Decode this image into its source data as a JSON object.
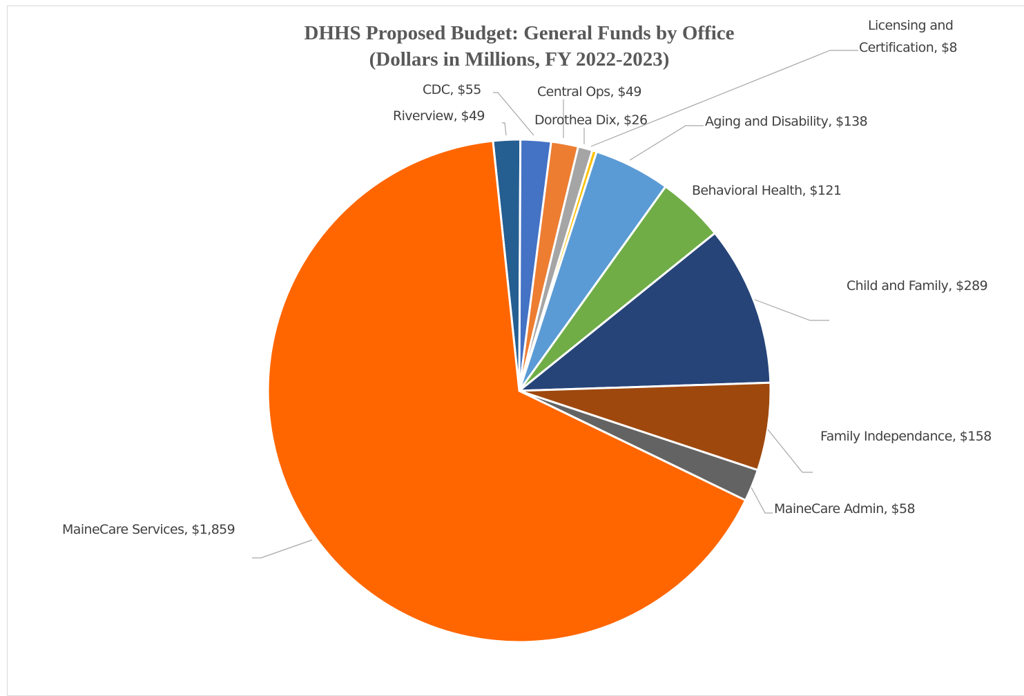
{
  "chart_data": {
    "type": "pie",
    "title_lines": [
      "DHHS Proposed Budget: General Funds by Office",
      "(Dollars in Millions, FY 2022-2023)"
    ],
    "slices": [
      {
        "label": "Riverview, $49",
        "value": 49,
        "color": "#255E91"
      },
      {
        "label": "CDC,  $55",
        "value": 55,
        "color": "#4472C4"
      },
      {
        "label": "Central Ops, $49",
        "value": 49,
        "color": "#ED7D31"
      },
      {
        "label": "Dorothea Dix,  $26",
        "value": 26,
        "color": "#A5A5A5"
      },
      {
        "label": "Licensing and Certification, $8",
        "value": 8,
        "color": "#FFC000",
        "label_lines": [
          "Licensing and",
          "Certification, $8"
        ]
      },
      {
        "label": "Aging and Disability,  $138",
        "value": 138,
        "color": "#5B9BD5"
      },
      {
        "label": "Behavioral Health, $121",
        "value": 121,
        "color": "#70AD47"
      },
      {
        "label": "Child and Family,  $289",
        "value": 289,
        "color": "#264478"
      },
      {
        "label": "Family Independance,  $158",
        "value": 158,
        "color": "#9E480E"
      },
      {
        "label": "MaineCare Admin, $58",
        "value": 58,
        "color": "#636363"
      },
      {
        "label": "MaineCare Services, $1,859",
        "value": 1859,
        "color": "#FF6600"
      }
    ]
  }
}
